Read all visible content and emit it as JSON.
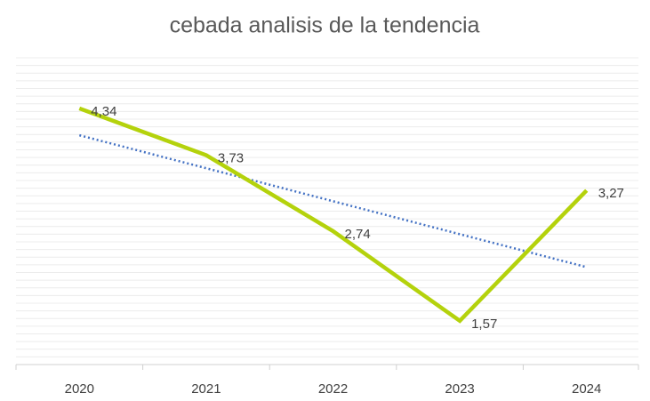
{
  "chart_data": {
    "type": "line",
    "title": "cebada analisis de la tendencia",
    "categories": [
      "2020",
      "2021",
      "2022",
      "2023",
      "2024"
    ],
    "series": [
      {
        "name": "cebada",
        "color": "#b4d20c",
        "values": [
          4.34,
          3.73,
          2.74,
          1.57,
          3.27
        ],
        "value_labels": [
          "4,34",
          "3,73",
          "2,74",
          "1,57",
          "3,27"
        ]
      }
    ],
    "trendline": {
      "type": "linear",
      "color": "#4472c4",
      "style": "dotted"
    },
    "ylim": [
      1,
      5
    ],
    "yticks": [
      1,
      1.1,
      1.2,
      1.3,
      1.4,
      1.5,
      1.6,
      1.7,
      1.8,
      1.9,
      2,
      2.1,
      2.2,
      2.3,
      2.4,
      2.5,
      2.6,
      2.7,
      2.8,
      2.9,
      3,
      3.1,
      3.2,
      3.3,
      3.4,
      3.5,
      3.6,
      3.7,
      3.8,
      3.9,
      4,
      4.1,
      4.2,
      4.3,
      4.4,
      4.5,
      4.6,
      4.7,
      4.8,
      4.9,
      5
    ],
    "grid": true
  }
}
